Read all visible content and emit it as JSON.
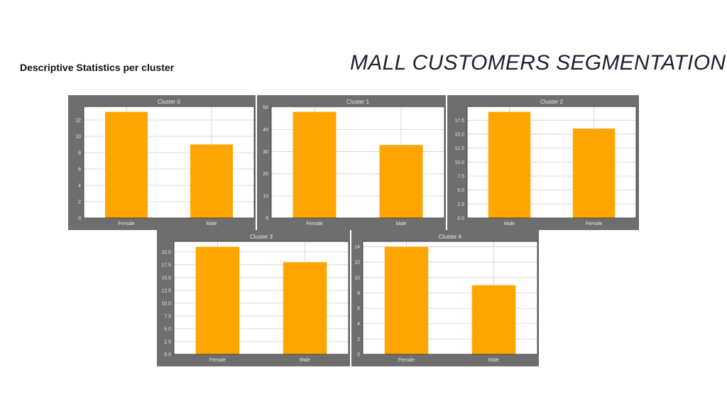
{
  "slide": {
    "title": "MALL CUSTOMERS SEGMENTATION",
    "heading": "Descriptive Statistics per cluster"
  },
  "colors": {
    "bar": "#FFA500",
    "panel_bg": "#6e6e6e",
    "plot_bg": "#ffffff",
    "grid": "#d0d0d0",
    "text": "#e6e6e6"
  },
  "chart_data": [
    {
      "type": "bar",
      "title": "Cluster 0",
      "categories": [
        "Female",
        "Male"
      ],
      "values": [
        13,
        9
      ],
      "ylim": [
        0,
        13.65
      ],
      "yticks": [
        0,
        2,
        4,
        6,
        8,
        10,
        12
      ],
      "yticklabels": [
        "0",
        "2",
        "4",
        "6",
        "8",
        "10",
        "12"
      ],
      "grid": true
    },
    {
      "type": "bar",
      "title": "Cluster 1",
      "categories": [
        "Female",
        "Male"
      ],
      "values": [
        48,
        33
      ],
      "ylim": [
        0,
        50.4
      ],
      "yticks": [
        0,
        10,
        20,
        30,
        40,
        50
      ],
      "yticklabels": [
        "0",
        "10",
        "20",
        "30",
        "40",
        "50"
      ],
      "grid": true
    },
    {
      "type": "bar",
      "title": "Cluster 2",
      "categories": [
        "Male",
        "Female"
      ],
      "values": [
        19,
        16
      ],
      "ylim": [
        0,
        19.95
      ],
      "yticks": [
        0,
        2.5,
        5,
        7.5,
        10,
        12.5,
        15,
        17.5
      ],
      "yticklabels": [
        "0.0",
        "2.5",
        "5.0",
        "7.5",
        "10.0",
        "12.5",
        "15.0",
        "17.5"
      ],
      "grid": true
    },
    {
      "type": "bar",
      "title": "Cluster 3",
      "categories": [
        "Female",
        "Male"
      ],
      "values": [
        21,
        18
      ],
      "ylim": [
        0,
        22.05
      ],
      "yticks": [
        0,
        2.5,
        5,
        7.5,
        10,
        12.5,
        15,
        17.5,
        20
      ],
      "yticklabels": [
        "0.0",
        "2.5",
        "5.0",
        "7.5",
        "10.0",
        "12.5",
        "15.0",
        "17.5",
        "20.0"
      ],
      "grid": true
    },
    {
      "type": "bar",
      "title": "Cluster 4",
      "categories": [
        "Female",
        "Male"
      ],
      "values": [
        14,
        9
      ],
      "ylim": [
        0,
        14.7
      ],
      "yticks": [
        0,
        2,
        4,
        6,
        8,
        10,
        12,
        14
      ],
      "yticklabels": [
        "0",
        "2",
        "4",
        "6",
        "8",
        "10",
        "12",
        "14"
      ],
      "grid": true
    }
  ]
}
